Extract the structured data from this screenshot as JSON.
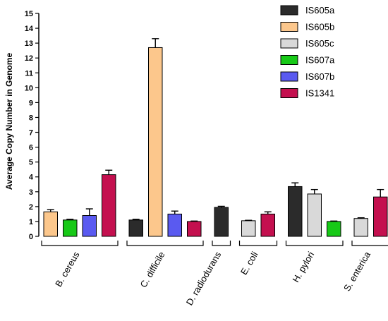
{
  "chart_data": {
    "type": "bar",
    "title": "",
    "xlabel": "",
    "ylabel": "Average Copy Number in Genome",
    "ylim": [
      0,
      15
    ],
    "yticks": [
      0,
      1,
      2,
      3,
      4,
      5,
      6,
      7,
      8,
      9,
      10,
      11,
      12,
      13,
      14,
      15
    ],
    "grid": false,
    "legend_position": "top-right",
    "series": [
      {
        "name": "IS605a",
        "color": "#2b2b2b"
      },
      {
        "name": "IS605b",
        "color": "#fcc78c"
      },
      {
        "name": "IS605c",
        "color": "#d9d9d9"
      },
      {
        "name": "IS607a",
        "color": "#17c917"
      },
      {
        "name": "IS607b",
        "color": "#5a5af0"
      },
      {
        "name": "IS1341",
        "color": "#c4104f"
      }
    ],
    "groups": [
      {
        "category": "B. cereus",
        "bars": [
          {
            "series": "IS605b",
            "value": 1.65,
            "error": 0.15
          },
          {
            "series": "IS607a",
            "value": 1.1,
            "error": 0.05
          },
          {
            "series": "IS607b",
            "value": 1.4,
            "error": 0.45
          },
          {
            "series": "IS1341",
            "value": 4.15,
            "error": 0.3
          }
        ]
      },
      {
        "category": "C. difficile",
        "bars": [
          {
            "series": "IS605a",
            "value": 1.1,
            "error": 0.05
          },
          {
            "series": "IS605b",
            "value": 12.7,
            "error": 0.6
          },
          {
            "series": "IS607b",
            "value": 1.5,
            "error": 0.2
          },
          {
            "series": "IS1341",
            "value": 1.0,
            "error": 0.03
          }
        ]
      },
      {
        "category": "D. radiodurans",
        "bars": [
          {
            "series": "IS605a",
            "value": 1.95,
            "error": 0.07
          }
        ]
      },
      {
        "category": "E. coli",
        "bars": [
          {
            "series": "IS605c",
            "value": 1.05,
            "error": 0.03
          },
          {
            "series": "IS1341",
            "value": 1.5,
            "error": 0.15
          }
        ]
      },
      {
        "category": "H. pylori",
        "bars": [
          {
            "series": "IS605a",
            "value": 3.35,
            "error": 0.25
          },
          {
            "series": "IS605c",
            "value": 2.85,
            "error": 0.3
          },
          {
            "series": "IS607a",
            "value": 1.0,
            "error": 0.03
          }
        ]
      },
      {
        "category": "S. enterica",
        "bars": [
          {
            "series": "IS605c",
            "value": 1.2,
            "error": 0.05
          },
          {
            "series": "IS1341",
            "value": 2.65,
            "error": 0.5
          }
        ]
      }
    ]
  }
}
